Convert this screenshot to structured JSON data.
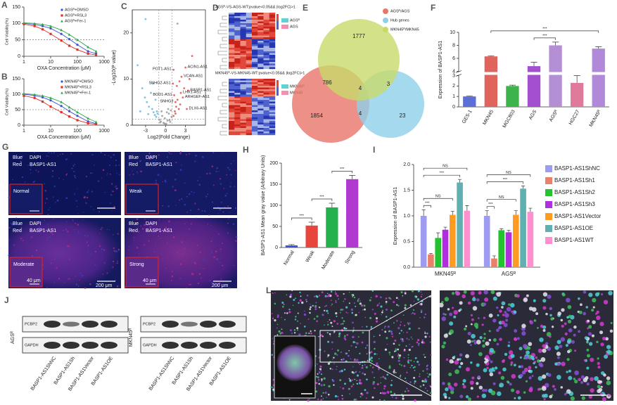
{
  "chart_data": [
    {
      "panel_label": "A",
      "type": "line",
      "xlabel": "OXA Concentration (μM)",
      "ylabel": "Cell Viability(%)",
      "xscale": "log",
      "x": [
        1,
        2.5,
        5,
        10,
        25,
        50,
        100,
        250,
        500
      ],
      "xlim": [
        1,
        1000
      ],
      "xticks": [
        1,
        10,
        100,
        1000
      ],
      "ylim": [
        0,
        150
      ],
      "yticks": [
        0,
        50,
        100,
        150
      ],
      "hline": 50,
      "series": [
        {
          "name": "AGSᴿ+DMSO",
          "color": "#3b4fd8",
          "values": [
            100,
            97,
            92,
            85,
            68,
            52,
            35,
            15,
            8
          ]
        },
        {
          "name": "AGSᴿ+RSL3",
          "color": "#e0302a",
          "values": [
            98,
            92,
            82,
            68,
            48,
            32,
            20,
            8,
            4
          ]
        },
        {
          "name": "AGSᴿ+Fer-1",
          "color": "#2aa84a",
          "values": [
            102,
            100,
            97,
            92,
            80,
            66,
            50,
            28,
            15
          ]
        }
      ]
    },
    {
      "panel_label": "B",
      "type": "line",
      "xlabel": "OXA Concentration (μM)",
      "ylabel": "Cell Viability(%)",
      "xscale": "log",
      "x": [
        1,
        2.5,
        5,
        10,
        25,
        50,
        100,
        250,
        500
      ],
      "xlim": [
        1,
        1000
      ],
      "xticks": [
        1,
        10,
        100,
        1000
      ],
      "ylim": [
        0,
        150
      ],
      "yticks": [
        0,
        50,
        100,
        150
      ],
      "hline": 50,
      "series": [
        {
          "name": "MKN45ᴿ+DMSO",
          "color": "#3b4fd8",
          "values": [
            100,
            96,
            90,
            80,
            62,
            45,
            30,
            12,
            5
          ]
        },
        {
          "name": "MKN45ᴿ+RSL3",
          "color": "#e0302a",
          "values": [
            95,
            88,
            76,
            60,
            42,
            28,
            16,
            6,
            3
          ]
        },
        {
          "name": "MKN45ᴿ+Fer-1",
          "color": "#2aa84a",
          "values": [
            102,
            99,
            95,
            88,
            75,
            58,
            42,
            22,
            10
          ]
        }
      ]
    },
    {
      "panel_label": "C",
      "type": "scatter",
      "xlabel": "Log2(Fold Change)",
      "ylabel": "-Log10(P value)",
      "xlim": [
        -5,
        6
      ],
      "xticks": [
        -3,
        0,
        3
      ],
      "ylim": [
        0,
        25
      ],
      "yticks": [
        0,
        10,
        20
      ],
      "vlines": [
        -1,
        1
      ],
      "hline": 1.3,
      "series": [
        {
          "color": "#6fb7dc",
          "x": [
            -4.2,
            -3.5,
            -3.1,
            -2.8,
            -2.5,
            -2.2,
            -2,
            -1.8,
            -1.6,
            -1.4,
            -1.3,
            -1.2,
            -1.5,
            -2.6,
            -1.9,
            -3.8,
            -3
          ],
          "values": [
            13,
            8,
            6,
            5,
            4,
            7,
            3.5,
            2.8,
            2.2,
            1.8,
            3,
            2.5,
            5.5,
            2.4,
            9,
            3,
            23
          ]
        },
        {
          "color": "#999999",
          "x": [
            -0.9,
            -0.7,
            -0.5,
            -0.3,
            -0.1,
            0.1,
            0.3,
            0.5,
            0.7,
            0.9,
            -0.6,
            0.4,
            -0.2,
            0.6,
            0.2,
            -0.8,
            0.8,
            0,
            1.8
          ],
          "values": [
            1.2,
            0.8,
            2,
            0.5,
            1.5,
            0.3,
            1,
            2.5,
            0.7,
            1.8,
            3,
            3.5,
            0.4,
            1.1,
            2.8,
            0.6,
            3.2,
            0.2,
            22
          ]
        },
        {
          "color": "#d9534f",
          "x": [
            1.2,
            3.0,
            2.4,
            1.1,
            3.4,
            2.3,
            2.6,
            1.3,
            1.5,
            3.2,
            1.4,
            1.6,
            1.8,
            2,
            1.2,
            2.2,
            2.8,
            1.7,
            4,
            3.6,
            1.5,
            2.1
          ],
          "values": [
            12,
            12.5,
            10.5,
            9,
            7.5,
            7,
            6,
            6.5,
            5,
            3.5,
            3,
            4,
            5.5,
            3.5,
            2,
            4.5,
            8,
            8.5,
            15,
            10,
            2.5,
            9.5
          ],
          "labels": [
            "POT1-AS1",
            "ACIN1-AS1",
            "VCAN-AS1",
            "SNHG2-AS1",
            "BASP1-AS1",
            "LHX1-AS1",
            "ARHGEF-AS1",
            "BOD1-AS1",
            "SNHG3",
            "DLX6-AS1",
            null,
            null,
            null,
            null,
            null,
            null,
            null,
            null,
            null,
            null,
            null,
            null
          ]
        }
      ]
    },
    {
      "panel_label": "F",
      "type": "bar",
      "ylabel": "Expression of BASP1-AS1",
      "categories": [
        "GES-1",
        "MKN45",
        "MGC803",
        "AGS",
        "AGSᴿ",
        "HGC27",
        "MKN45ᴿ"
      ],
      "values": [
        1,
        6.3,
        2.0,
        4.8,
        8.0,
        2.3,
        7.5
      ],
      "errors": [
        0.05,
        0.1,
        0.08,
        0.6,
        0.5,
        0.7,
        0.3
      ],
      "colors": [
        "#5b6fd6",
        "#e0645c",
        "#3cb44b",
        "#a24fd0",
        "#b58fd6",
        "#e07a9a",
        "#b08ad8"
      ],
      "ylim": [
        0,
        10
      ],
      "yticks": [
        0,
        1,
        2,
        3,
        4,
        6,
        8,
        10
      ],
      "axis_break": [
        3,
        4
      ],
      "significance": [
        {
          "between": [
            "AGS",
            "AGSᴿ"
          ],
          "text": "***"
        },
        {
          "between": [
            "MKN45",
            "MKN45ᴿ"
          ],
          "text": "***"
        }
      ]
    },
    {
      "panel_label": "H",
      "type": "bar",
      "ylabel": "BASP1-AS1 Mean gray value (Arbitrary Units)",
      "categories": [
        "Normal",
        "Weak",
        "Moderate",
        "Strong"
      ],
      "values": [
        5,
        52,
        95,
        162
      ],
      "errors": [
        2,
        8,
        10,
        9
      ],
      "colors": [
        "#3a56e0",
        "#e8463c",
        "#22b14c",
        "#b03ad0"
      ],
      "ylim": [
        0,
        200
      ],
      "yticks": [
        0,
        50,
        100,
        150,
        200
      ],
      "significance": [
        {
          "between": [
            "Normal",
            "Weak"
          ],
          "text": "***"
        },
        {
          "between": [
            "Weak",
            "Moderate"
          ],
          "text": "***"
        },
        {
          "between": [
            "Moderate",
            "Strong"
          ],
          "text": "***"
        }
      ]
    },
    {
      "panel_label": "I",
      "type": "grouped_bar",
      "ylabel": "Expression of BASP1-AS1",
      "categories": [
        "MKN45ᴿ",
        "AGSᴿ"
      ],
      "ylim": [
        0,
        2
      ],
      "yticks": [
        {
          "value": 0,
          "label": "0.0"
        },
        0.5,
        {
          "value": 1,
          "label": "1.0"
        },
        1.5,
        {
          "value": 2,
          "label": "2.0"
        }
      ],
      "series": [
        {
          "name": "BASP1-AS1ShNC",
          "color": "#9d9cf0",
          "values": [
            1.0,
            1.0
          ],
          "errors": [
            0.12,
            0.1
          ]
        },
        {
          "name": "BASP1-AS1Sh1",
          "color": "#e8806a",
          "values": [
            0.25,
            0.17
          ],
          "errors": [
            0.02,
            0.05
          ]
        },
        {
          "name": "BASP1-AS1Sh2",
          "color": "#22c32e",
          "values": [
            0.57,
            0.72
          ],
          "errors": [
            0.1,
            0.03
          ]
        },
        {
          "name": "BASP1-AS1Sh3",
          "color": "#b02ee0",
          "values": [
            0.73,
            0.68
          ],
          "errors": [
            0.05,
            0.04
          ]
        },
        {
          "name": "BASP1-AS1Vector",
          "color": "#ff9b21",
          "values": [
            1.02,
            1.02
          ],
          "errors": [
            0.07,
            0.08
          ]
        },
        {
          "name": "BASP1-AS1OE",
          "color": "#5fb0b0",
          "values": [
            1.65,
            1.53
          ],
          "errors": [
            0.06,
            0.05
          ]
        },
        {
          "name": "BASP1-AS1WT",
          "color": "#ff8fcf",
          "values": [
            1.1,
            1.08
          ],
          "errors": [
            0.1,
            0.07
          ]
        }
      ],
      "significance": [
        {
          "group": "MKN45ᴿ",
          "between": [
            "BASP1-AS1ShNC",
            "BASP1-AS1Sh1"
          ],
          "text": "***"
        },
        {
          "group": "MKN45ᴿ",
          "between": [
            "BASP1-AS1ShNC",
            "BASP1-AS1Vector"
          ],
          "text": "NS"
        },
        {
          "group": "MKN45ᴿ",
          "between": [
            "BASP1-AS1ShNC",
            "BASP1-AS1OE"
          ],
          "text": "***"
        },
        {
          "group": "MKN45ᴿ",
          "between": [
            "BASP1-AS1ShNC",
            "BASP1-AS1WT"
          ],
          "text": "NS"
        },
        {
          "group": "AGSᴿ",
          "between": [
            "BASP1-AS1ShNC",
            "BASP1-AS1Sh1"
          ],
          "text": "***"
        },
        {
          "group": "AGSᴿ",
          "between": [
            "BASP1-AS1ShNC",
            "BASP1-AS1Vector"
          ],
          "text": "NS"
        },
        {
          "group": "AGSᴿ",
          "between": [
            "BASP1-AS1ShNC",
            "BASP1-AS1OE"
          ],
          "text": "***"
        },
        {
          "group": "AGSᴿ",
          "between": [
            "BASP1-AS1ShNC",
            "BASP1-AS1WT"
          ],
          "text": "NS"
        }
      ]
    }
  ],
  "heatmaps": {
    "panel_label": "D",
    "items": [
      {
        "title": "AGSᴿ-VS-AGS-WT:pvalue<0.05&& |log2FC|>1",
        "groups": [
          "AGSᴿ",
          "AGS"
        ]
      },
      {
        "title": "MKN45ᴿ-VS-MKN45-WT:pvalue<0.05&& |log2FC|>1",
        "groups": [
          "MKN45ᴿ",
          "MKN45"
        ]
      }
    ]
  },
  "venn": {
    "panel_label": "E",
    "sets": [
      {
        "name": "AGSᴿ/AGS",
        "color": "#e8766a"
      },
      {
        "name": "Hub genes",
        "color": "#8fd0e8"
      },
      {
        "name": "MKN45ᴿ/MKN45",
        "color": "#c8d96a"
      }
    ],
    "counts": [
      1777,
      786,
      4,
      3,
      1854,
      4,
      23
    ]
  },
  "images": {
    "panel_label": "G",
    "legend": [
      [
        "Blue",
        "DAPI"
      ],
      [
        "Red",
        "BASP1-AS1"
      ]
    ],
    "panels": [
      {
        "label": "Normal"
      },
      {
        "label": "Weak"
      },
      {
        "label": "Moderate",
        "inset_scale": "40 μm",
        "scale": "200 μm"
      },
      {
        "label": "Strong",
        "inset_scale": "40 μm",
        "scale": "200 μm"
      }
    ]
  },
  "blots": {
    "panel_label": "J",
    "proteins": [
      "PCBP2",
      "GAPDH"
    ],
    "cells": [
      "AGSᴿ",
      "MKN45ᴿ"
    ],
    "lanes": [
      "BASP1-AS1ShNC",
      "BASP1-AS1Sh",
      "BASP1-AS1Vector",
      "BASP1-AS1OE"
    ]
  },
  "staining": {
    "panel_label": "L"
  }
}
